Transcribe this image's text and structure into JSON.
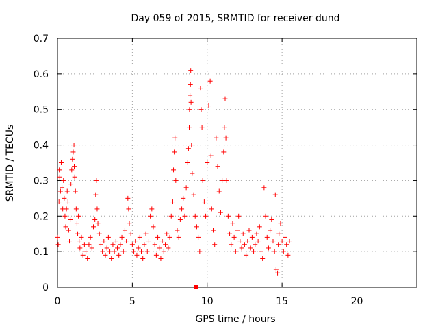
{
  "chart_data": {
    "type": "scatter",
    "title": "Day 059 of 2015, SRMTID for receiver dund",
    "xlabel": "GPS time / hours",
    "ylabel": "SRMTID / TECUs",
    "xlim": [
      0,
      24
    ],
    "ylim": [
      0,
      0.7
    ],
    "xticks": [
      0,
      5,
      10,
      15,
      20
    ],
    "yticks": [
      0,
      0.1,
      0.2,
      0.3,
      0.4,
      0.5,
      0.6,
      0.7
    ],
    "xtick_labels": [
      "0",
      "5",
      "10",
      "15",
      "20"
    ],
    "ytick_labels": [
      "0",
      "0.1",
      "0.2",
      "0.3",
      "0.4",
      "0.5",
      "0.6",
      "0.7"
    ],
    "grid": true,
    "legend": "none",
    "marker": "plus",
    "color": "#ff0000",
    "series": [
      {
        "points": [
          [
            0.0,
            0.14
          ],
          [
            0.05,
            0.12
          ],
          [
            0.1,
            0.24
          ],
          [
            0.12,
            0.33
          ],
          [
            0.15,
            0.31
          ],
          [
            0.2,
            0.27
          ],
          [
            0.25,
            0.35
          ],
          [
            0.3,
            0.28
          ],
          [
            0.35,
            0.22
          ],
          [
            0.4,
            0.3
          ],
          [
            0.45,
            0.25
          ],
          [
            0.5,
            0.2
          ],
          [
            0.55,
            0.17
          ],
          [
            0.6,
            0.22
          ],
          [
            0.65,
            0.27
          ],
          [
            0.7,
            0.24
          ],
          [
            0.75,
            0.16
          ],
          [
            0.8,
            0.13
          ],
          [
            0.85,
            0.19
          ],
          [
            0.9,
            0.29
          ],
          [
            0.95,
            0.33
          ],
          [
            1.0,
            0.36
          ],
          [
            1.05,
            0.38
          ],
          [
            1.1,
            0.4
          ],
          [
            1.12,
            0.34
          ],
          [
            1.15,
            0.31
          ],
          [
            1.2,
            0.27
          ],
          [
            1.25,
            0.22
          ],
          [
            1.3,
            0.18
          ],
          [
            1.35,
            0.15
          ],
          [
            1.4,
            0.2
          ],
          [
            1.45,
            0.13
          ],
          [
            1.5,
            0.11
          ],
          [
            1.6,
            0.14
          ],
          [
            1.7,
            0.09
          ],
          [
            1.8,
            0.12
          ],
          [
            1.9,
            0.1
          ],
          [
            2.0,
            0.08
          ],
          [
            2.1,
            0.12
          ],
          [
            2.2,
            0.14
          ],
          [
            2.3,
            0.11
          ],
          [
            2.4,
            0.17
          ],
          [
            2.5,
            0.19
          ],
          [
            2.55,
            0.26
          ],
          [
            2.6,
            0.3
          ],
          [
            2.65,
            0.22
          ],
          [
            2.7,
            0.18
          ],
          [
            2.8,
            0.15
          ],
          [
            2.9,
            0.12
          ],
          [
            3.0,
            0.1
          ],
          [
            3.1,
            0.13
          ],
          [
            3.2,
            0.09
          ],
          [
            3.3,
            0.11
          ],
          [
            3.4,
            0.14
          ],
          [
            3.5,
            0.1
          ],
          [
            3.6,
            0.08
          ],
          [
            3.7,
            0.12
          ],
          [
            3.8,
            0.1
          ],
          [
            3.9,
            0.13
          ],
          [
            4.0,
            0.11
          ],
          [
            4.1,
            0.09
          ],
          [
            4.2,
            0.12
          ],
          [
            4.3,
            0.14
          ],
          [
            4.4,
            0.1
          ],
          [
            4.5,
            0.16
          ],
          [
            4.6,
            0.13
          ],
          [
            4.7,
            0.25
          ],
          [
            4.75,
            0.22
          ],
          [
            4.8,
            0.18
          ],
          [
            4.9,
            0.15
          ],
          [
            5.0,
            0.12
          ],
          [
            5.1,
            0.1
          ],
          [
            5.2,
            0.13
          ],
          [
            5.3,
            0.09
          ],
          [
            5.4,
            0.11
          ],
          [
            5.5,
            0.14
          ],
          [
            5.6,
            0.1
          ],
          [
            5.7,
            0.08
          ],
          [
            5.8,
            0.12
          ],
          [
            5.9,
            0.15
          ],
          [
            6.0,
            0.1
          ],
          [
            6.1,
            0.13
          ],
          [
            6.2,
            0.2
          ],
          [
            6.3,
            0.22
          ],
          [
            6.4,
            0.17
          ],
          [
            6.5,
            0.12
          ],
          [
            6.6,
            0.09
          ],
          [
            6.7,
            0.14
          ],
          [
            6.8,
            0.11
          ],
          [
            6.9,
            0.08
          ],
          [
            7.0,
            0.13
          ],
          [
            7.1,
            0.1
          ],
          [
            7.2,
            0.12
          ],
          [
            7.3,
            0.15
          ],
          [
            7.4,
            0.11
          ],
          [
            7.5,
            0.14
          ],
          [
            7.6,
            0.2
          ],
          [
            7.7,
            0.24
          ],
          [
            7.75,
            0.33
          ],
          [
            7.8,
            0.38
          ],
          [
            7.85,
            0.42
          ],
          [
            7.9,
            0.3
          ],
          [
            8.0,
            0.16
          ],
          [
            8.1,
            0.14
          ],
          [
            8.2,
            0.19
          ],
          [
            8.3,
            0.22
          ],
          [
            8.4,
            0.25
          ],
          [
            8.5,
            0.2
          ],
          [
            8.6,
            0.28
          ],
          [
            8.7,
            0.35
          ],
          [
            8.75,
            0.39
          ],
          [
            8.8,
            0.45
          ],
          [
            8.82,
            0.5
          ],
          [
            8.85,
            0.54
          ],
          [
            8.88,
            0.57
          ],
          [
            8.9,
            0.61
          ],
          [
            8.92,
            0.52
          ],
          [
            8.95,
            0.4
          ],
          [
            9.0,
            0.32
          ],
          [
            9.1,
            0.26
          ],
          [
            9.2,
            0.2
          ],
          [
            9.3,
            0.17
          ],
          [
            9.4,
            0.14
          ],
          [
            9.5,
            0.1
          ],
          [
            9.55,
            0.56
          ],
          [
            9.6,
            0.5
          ],
          [
            9.65,
            0.45
          ],
          [
            9.7,
            0.3
          ],
          [
            9.8,
            0.24
          ],
          [
            9.9,
            0.2
          ],
          [
            10.0,
            0.35
          ],
          [
            10.1,
            0.51
          ],
          [
            10.2,
            0.58
          ],
          [
            10.25,
            0.37
          ],
          [
            10.3,
            0.22
          ],
          [
            10.4,
            0.16
          ],
          [
            10.5,
            0.12
          ],
          [
            10.6,
            0.42
          ],
          [
            10.7,
            0.34
          ],
          [
            10.8,
            0.27
          ],
          [
            10.9,
            0.21
          ],
          [
            11.0,
            0.3
          ],
          [
            11.1,
            0.38
          ],
          [
            11.15,
            0.45
          ],
          [
            11.2,
            0.53
          ],
          [
            11.25,
            0.42
          ],
          [
            11.3,
            0.3
          ],
          [
            11.4,
            0.2
          ],
          [
            11.5,
            0.15
          ],
          [
            11.6,
            0.12
          ],
          [
            11.7,
            0.18
          ],
          [
            11.8,
            0.14
          ],
          [
            11.9,
            0.1
          ],
          [
            12.0,
            0.16
          ],
          [
            12.1,
            0.2
          ],
          [
            12.2,
            0.13
          ],
          [
            12.3,
            0.11
          ],
          [
            12.4,
            0.15
          ],
          [
            12.5,
            0.12
          ],
          [
            12.6,
            0.09
          ],
          [
            12.7,
            0.13
          ],
          [
            12.8,
            0.16
          ],
          [
            12.9,
            0.11
          ],
          [
            13.0,
            0.14
          ],
          [
            13.1,
            0.1
          ],
          [
            13.2,
            0.12
          ],
          [
            13.3,
            0.15
          ],
          [
            13.4,
            0.13
          ],
          [
            13.5,
            0.17
          ],
          [
            13.6,
            0.1
          ],
          [
            13.7,
            0.08
          ],
          [
            13.8,
            0.28
          ],
          [
            13.9,
            0.2
          ],
          [
            14.0,
            0.14
          ],
          [
            14.1,
            0.11
          ],
          [
            14.2,
            0.16
          ],
          [
            14.3,
            0.19
          ],
          [
            14.4,
            0.13
          ],
          [
            14.5,
            0.1
          ],
          [
            14.55,
            0.26
          ],
          [
            14.6,
            0.05
          ],
          [
            14.7,
            0.04
          ],
          [
            14.75,
            0.12
          ],
          [
            14.8,
            0.15
          ],
          [
            14.9,
            0.18
          ],
          [
            15.0,
            0.13
          ],
          [
            15.1,
            0.1
          ],
          [
            15.2,
            0.14
          ],
          [
            15.3,
            0.12
          ],
          [
            15.4,
            0.09
          ],
          [
            15.5,
            0.13
          ]
        ]
      }
    ],
    "highlighted_marker": {
      "x": 9.25,
      "y": 0.0
    }
  }
}
